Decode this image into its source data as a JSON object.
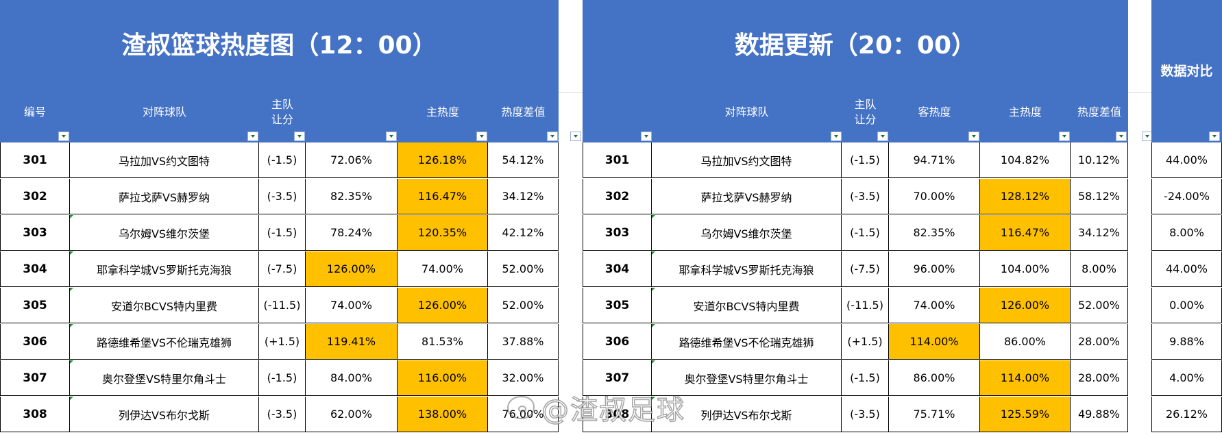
{
  "left": {
    "title": "渣叔篮球热度图（12：00）",
    "headers": [
      "编号",
      "对阵球队",
      "主队\n让分",
      "",
      "主热度",
      "热度差值"
    ],
    "rows": [
      {
        "id": "301",
        "match": "马拉加VS约文图特",
        "handicap": "(-1.5)",
        "away": "72.06%",
        "home": "126.18%",
        "diff": "54.12%"
      },
      {
        "id": "302",
        "match": "萨拉戈萨VS赫罗纳",
        "handicap": "(-3.5)",
        "away": "82.35%",
        "home": "116.47%",
        "diff": "34.12%"
      },
      {
        "id": "303",
        "match": "乌尔姆VS维尔茨堡",
        "handicap": "(-1.5)",
        "away": "78.24%",
        "home": "120.35%",
        "diff": "42.12%"
      },
      {
        "id": "304",
        "match": "耶拿科学城VS罗斯托克海狼",
        "handicap": "(-7.5)",
        "away": "126.00%",
        "home": "74.00%",
        "diff": "52.00%"
      },
      {
        "id": "305",
        "match": "安道尔BCVS特内里费",
        "handicap": "(-11.5)",
        "away": "74.00%",
        "home": "126.00%",
        "diff": "52.00%"
      },
      {
        "id": "306",
        "match": "路德维希堡VS不伦瑞克雄狮",
        "handicap": "(+1.5)",
        "away": "119.41%",
        "home": "81.53%",
        "diff": "37.88%"
      },
      {
        "id": "307",
        "match": "奥尔登堡VS特里尔角斗士",
        "handicap": "(-1.5)",
        "away": "84.00%",
        "home": "116.00%",
        "diff": "32.00%"
      },
      {
        "id": "308",
        "match": "列伊达VS布尔戈斯",
        "handicap": "(-3.5)",
        "away": "62.00%",
        "home": "138.00%",
        "diff": "76.00%"
      }
    ]
  },
  "right": {
    "title": "数据更新（20：00）",
    "headers": [
      "",
      "对阵球队",
      "主队\n让分",
      "客热度",
      "主热度",
      "热度差值"
    ],
    "rows": [
      {
        "id": "301",
        "match": "马拉加VS约文图特",
        "handicap": "(-1.5)",
        "away": "94.71%",
        "home": "104.82%",
        "diff": "10.12%"
      },
      {
        "id": "302",
        "match": "萨拉戈萨VS赫罗纳",
        "handicap": "(-3.5)",
        "away": "70.00%",
        "home": "128.12%",
        "diff": "58.12%"
      },
      {
        "id": "303",
        "match": "乌尔姆VS维尔茨堡",
        "handicap": "(-1.5)",
        "away": "82.35%",
        "home": "116.47%",
        "diff": "34.12%"
      },
      {
        "id": "304",
        "match": "耶拿科学城VS罗斯托克海狼",
        "handicap": "(-7.5)",
        "away": "96.00%",
        "home": "104.00%",
        "diff": "8.00%"
      },
      {
        "id": "305",
        "match": "安道尔BCVS特内里费",
        "handicap": "(-11.5)",
        "away": "74.00%",
        "home": "126.00%",
        "diff": "52.00%"
      },
      {
        "id": "306",
        "match": "路德维希堡VS不伦瑞克雄狮",
        "handicap": "(+1.5)",
        "away": "114.00%",
        "home": "86.00%",
        "diff": "28.00%"
      },
      {
        "id": "307",
        "match": "奥尔登堡VS特里尔角斗士",
        "handicap": "(-1.5)",
        "away": "86.00%",
        "home": "114.00%",
        "diff": "28.00%"
      },
      {
        "id": "308",
        "match": "列伊达VS布尔戈斯",
        "handicap": "(-3.5)",
        "away": "75.71%",
        "home": "125.59%",
        "diff": "49.88%"
      }
    ]
  },
  "compare": {
    "title": "数据对比",
    "values": [
      "44.00%",
      "-24.00%",
      "8.00%",
      "44.00%",
      "0.00%",
      "9.88%",
      "4.00%",
      "26.12%"
    ]
  },
  "watermark": "@渣叔足球",
  "colors": {
    "header_bg": "#4472c4",
    "highlight": "#ffc000",
    "grid": "#000000"
  }
}
